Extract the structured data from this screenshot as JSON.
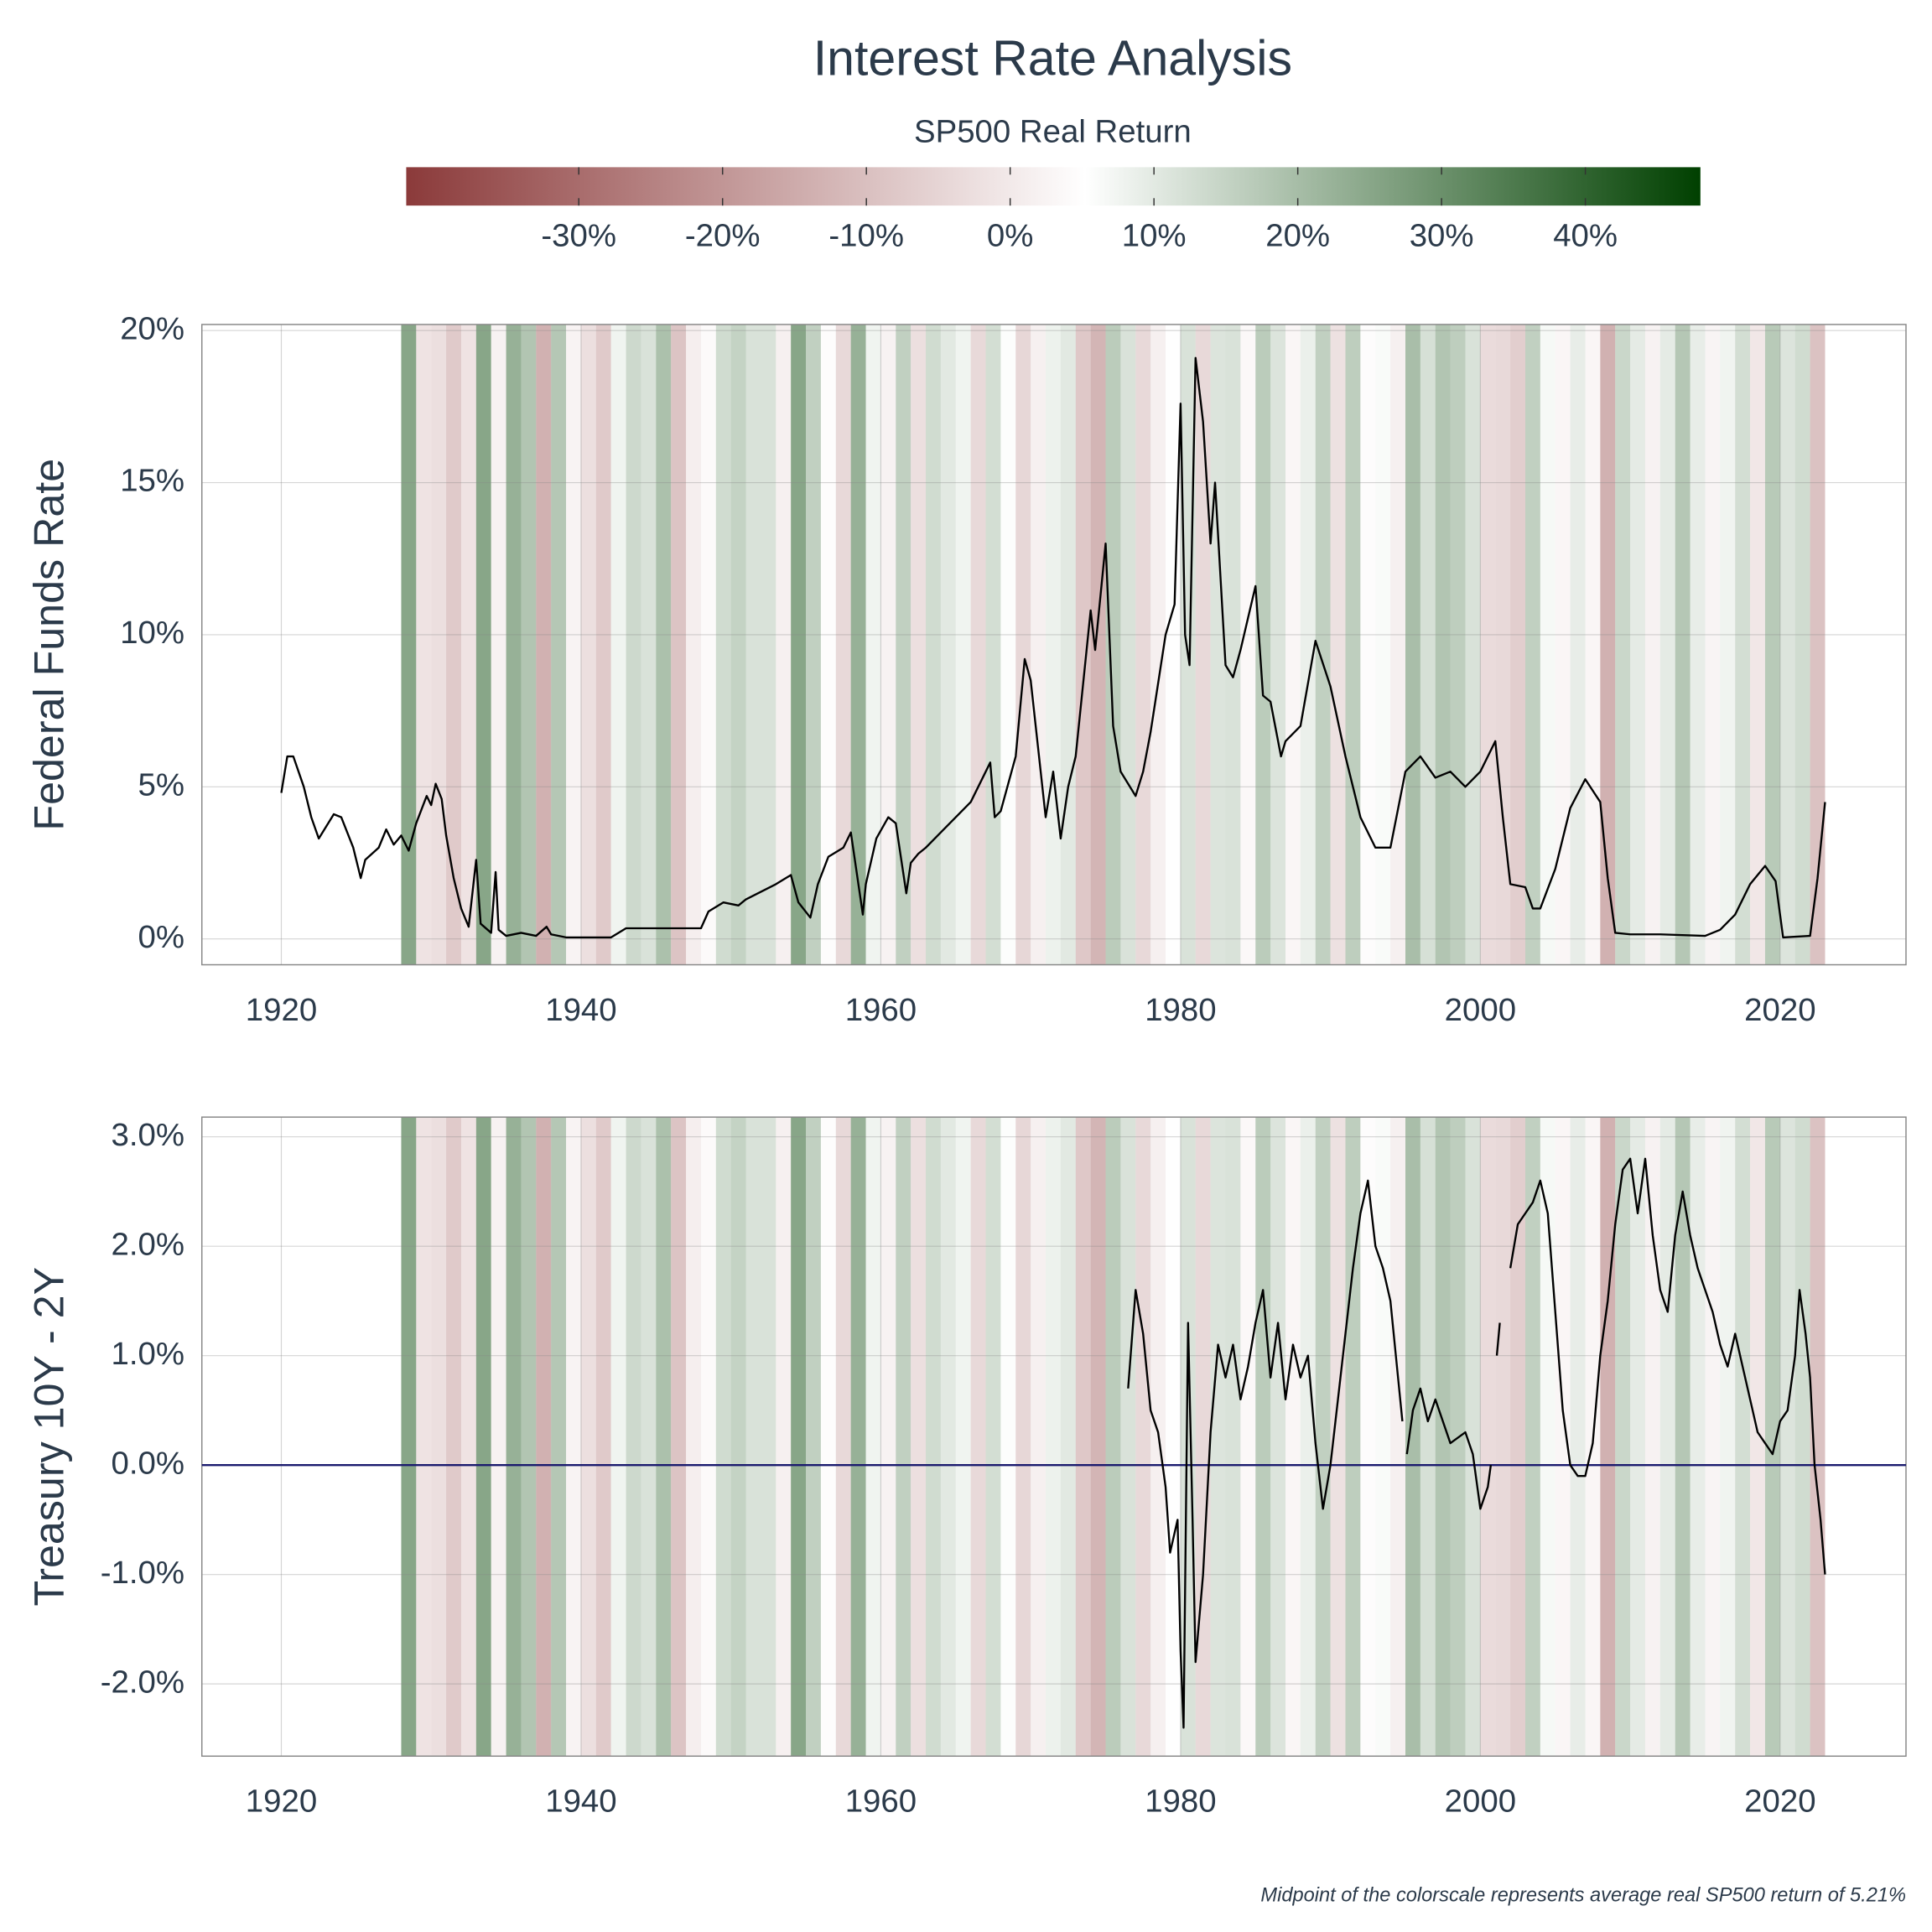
{
  "title": "Interest Rate Analysis",
  "caption": "Midpoint of the colorscale represents average real SP500 return of 5.21%",
  "colorbar": {
    "title": "SP500 Real Return",
    "range": [
      -42,
      48
    ],
    "midpoint": 5.21,
    "colors": [
      "#8b3a3a",
      "#ffffff",
      "#004000"
    ],
    "ticks": [
      {
        "value": -30,
        "label": "-30%"
      },
      {
        "value": -20,
        "label": "-20%"
      },
      {
        "value": -10,
        "label": "-10%"
      },
      {
        "value": 0,
        "label": "0%"
      },
      {
        "value": 10,
        "label": "10%"
      },
      {
        "value": 20,
        "label": "20%"
      },
      {
        "value": 30,
        "label": "30%"
      },
      {
        "value": 40,
        "label": "40%"
      }
    ]
  },
  "return_bands": {
    "years": [
      1928,
      1929,
      1930,
      1931,
      1932,
      1933,
      1934,
      1935,
      1936,
      1937,
      1938,
      1939,
      1940,
      1941,
      1942,
      1943,
      1944,
      1945,
      1946,
      1947,
      1948,
      1949,
      1950,
      1951,
      1952,
      1953,
      1954,
      1955,
      1956,
      1957,
      1958,
      1959,
      1960,
      1961,
      1962,
      1963,
      1964,
      1965,
      1966,
      1967,
      1968,
      1969,
      1970,
      1971,
      1972,
      1973,
      1974,
      1975,
      1976,
      1977,
      1978,
      1979,
      1980,
      1981,
      1982,
      1983,
      1984,
      1985,
      1986,
      1987,
      1988,
      1989,
      1990,
      1991,
      1992,
      1993,
      1994,
      1995,
      1996,
      1997,
      1998,
      1999,
      2000,
      2001,
      2002,
      2003,
      2004,
      2005,
      2006,
      2007,
      2008,
      2009,
      2010,
      2011,
      2012,
      2013,
      2014,
      2015,
      2016,
      2017,
      2018,
      2019,
      2020,
      2021,
      2022
    ],
    "values": [
      45,
      -8,
      -10,
      -20,
      -8,
      45,
      -1,
      40,
      31,
      -32,
      30,
      -0.4,
      -10,
      -20,
      10,
      22,
      18,
      33,
      -23,
      -3,
      3,
      21,
      25,
      18,
      18,
      -2,
      45,
      26,
      4,
      -13,
      40,
      10,
      -1,
      26,
      -10,
      21,
      15,
      10,
      -13,
      20,
      6,
      -14,
      -2,
      11,
      15,
      -21,
      -30,
      28,
      18,
      -13,
      -2,
      5,
      18,
      -13,
      17,
      18,
      2,
      28,
      17,
      1,
      12,
      26,
      -9,
      27,
      4,
      7,
      -2,
      34,
      19,
      31,
      27,
      18,
      -12,
      -13,
      -18,
      26,
      8,
      1,
      13,
      1,
      -32,
      23,
      14,
      -1,
      14,
      30,
      13,
      0,
      10,
      20,
      -6,
      29,
      17,
      21,
      -24
    ]
  },
  "chart_data": [
    {
      "type": "line",
      "ylabel": "Federal Funds Rate",
      "color": "#000000",
      "grid": true,
      "xlim": [
        1914.7,
        2028.4
      ],
      "ylim": [
        -0.85,
        20.2
      ],
      "xticks": [
        1920,
        1940,
        1960,
        1980,
        2000,
        2020
      ],
      "yticks": [
        {
          "value": 0,
          "label": "0%"
        },
        {
          "value": 5,
          "label": "5%"
        },
        {
          "value": 10,
          "label": "10%"
        },
        {
          "value": 15,
          "label": "15%"
        },
        {
          "value": 20,
          "label": "20%"
        }
      ],
      "x": [
        1920,
        1920.4,
        1920.8,
        1921.5,
        1922,
        1922.5,
        1923,
        1923.5,
        1924,
        1924.8,
        1925.3,
        1925.6,
        1926.5,
        1927,
        1927.5,
        1928,
        1928.5,
        1929,
        1929.7,
        1930,
        1930.3,
        1930.7,
        1931,
        1931.5,
        1932,
        1932.5,
        1933,
        1933.3,
        1934,
        1934.3,
        1934.5,
        1935,
        1936,
        1937,
        1937.7,
        1938,
        1939,
        1942,
        1943,
        1948,
        1948.5,
        1949.5,
        1950.5,
        1951,
        1953,
        1954,
        1954.5,
        1955.3,
        1955.8,
        1956.5,
        1957.5,
        1958,
        1958.8,
        1959,
        1959.7,
        1960.5,
        1961,
        1961.7,
        1962,
        1962.5,
        1963,
        1964,
        1965,
        1966,
        1966.5,
        1967.3,
        1967.6,
        1968,
        1969,
        1969.6,
        1970,
        1971,
        1971.5,
        1972,
        1972.5,
        1973,
        1974,
        1974.3,
        1975,
        1975.5,
        1976,
        1977,
        1977.5,
        1978,
        1979,
        1979.6,
        1980,
        1980.3,
        1980.6,
        1981,
        1981.5,
        1982,
        1982.3,
        1983,
        1983.5,
        1984,
        1985,
        1985.5,
        1986,
        1986.7,
        1987,
        1988,
        1989,
        1990,
        1991,
        1992,
        1993,
        1994,
        1995,
        1996,
        1997,
        1998,
        1999,
        2000,
        2001,
        2001.5,
        2002,
        2003,
        2003.5,
        2004,
        2005,
        2006,
        2007,
        2008,
        2008.5,
        2009,
        2010,
        2012,
        2015,
        2016,
        2017,
        2018,
        2019,
        2019.7,
        2020.2,
        2022,
        2022.5,
        2023
      ],
      "values": [
        4.8,
        6.0,
        6.0,
        5.0,
        4.0,
        3.3,
        3.7,
        4.1,
        4.0,
        3.0,
        2.0,
        2.6,
        3.0,
        3.6,
        3.1,
        3.4,
        2.9,
        3.8,
        4.7,
        4.4,
        5.1,
        4.6,
        3.4,
        2.0,
        1.0,
        0.4,
        2.6,
        0.5,
        0.2,
        2.2,
        0.3,
        0.1,
        0.2,
        0.1,
        0.4,
        0.15,
        0.05,
        0.05,
        0.35,
        0.35,
        0.9,
        1.2,
        1.1,
        1.3,
        1.8,
        2.1,
        1.2,
        0.7,
        1.8,
        2.7,
        3.0,
        3.5,
        0.8,
        1.8,
        3.3,
        4.0,
        3.8,
        1.5,
        2.5,
        2.8,
        3.0,
        3.5,
        4.0,
        4.5,
        5.0,
        5.8,
        4.0,
        4.2,
        6.0,
        9.2,
        8.5,
        4.0,
        5.5,
        3.3,
        5.0,
        6.0,
        10.8,
        9.5,
        13.0,
        7.0,
        5.5,
        4.7,
        5.5,
        6.8,
        10.0,
        11.0,
        17.6,
        10.0,
        9.0,
        19.1,
        17.0,
        13.0,
        15.0,
        9.0,
        8.6,
        9.5,
        11.6,
        8.0,
        7.8,
        6.0,
        6.5,
        7.0,
        9.8,
        8.3,
        6.0,
        4.0,
        3.0,
        3.0,
        5.5,
        6.0,
        5.3,
        5.5,
        5.0,
        5.5,
        6.5,
        4.0,
        1.8,
        1.7,
        1.0,
        1.0,
        2.3,
        4.3,
        5.25,
        4.5,
        2.0,
        0.2,
        0.15,
        0.15,
        0.1,
        0.3,
        0.8,
        1.8,
        2.4,
        1.9,
        0.05,
        0.1,
        2.0,
        4.5
      ]
    },
    {
      "type": "line",
      "ylabel": "Treasury 10Y - 2Y",
      "color": "#000000",
      "grid": true,
      "hline": 0,
      "hline_color": "#1a1a6e",
      "xlim": [
        1914.7,
        2028.4
      ],
      "ylim": [
        -2.66,
        3.18
      ],
      "xticks": [
        1920,
        1940,
        1960,
        1980,
        2000,
        2020
      ],
      "yticks": [
        {
          "value": -2,
          "label": "-2.0%"
        },
        {
          "value": -1,
          "label": "-1.0%"
        },
        {
          "value": 0,
          "label": "0.0%"
        },
        {
          "value": 1,
          "label": "1.0%"
        },
        {
          "value": 2,
          "label": "2.0%"
        },
        {
          "value": 3,
          "label": "3.0%"
        }
      ],
      "x": [
        1976.5,
        1977,
        1977.5,
        1978,
        1978.5,
        1979,
        1979.3,
        1979.8,
        1980,
        1980.2,
        1980.5,
        1980.8,
        1981,
        1981.5,
        1982,
        1982.5,
        1983,
        1983.5,
        1984,
        1984.5,
        1985,
        1985.5,
        1986,
        1986.5,
        1987,
        1987.5,
        1988,
        1988.5,
        1989,
        1989.5,
        1990,
        1990.5,
        1991,
        1991.5,
        1992,
        1992.5,
        1993,
        1993.5,
        1994,
        1994.8,
        1994.95,
        1995.1,
        1995.5,
        1996,
        1996.5,
        1997,
        1998,
        1999,
        1999.5,
        2000,
        2000.5,
        2000.7,
        2000.9,
        2001.1,
        2001.3,
        2001.6,
        2002,
        2002.5,
        2003,
        2003.5,
        2004,
        2004.5,
        2005,
        2005.5,
        2006,
        2006.5,
        2007,
        2007.5,
        2008,
        2008.5,
        2009,
        2009.5,
        2010,
        2010.5,
        2011,
        2011.5,
        2012,
        2012.5,
        2013,
        2013.5,
        2014,
        2014.5,
        2015,
        2015.5,
        2016,
        2016.5,
        2017,
        2017.5,
        2018,
        2018.5,
        2019,
        2019.5,
        2020,
        2020.5,
        2021,
        2021.3,
        2021.7,
        2022,
        2022.3,
        2022.7,
        2023
      ],
      "values": [
        0.7,
        1.6,
        1.2,
        0.5,
        0.3,
        -0.2,
        -0.8,
        -0.5,
        -1.7,
        -2.4,
        1.3,
        -0.5,
        -1.8,
        -1.0,
        0.3,
        1.1,
        0.8,
        1.1,
        0.6,
        0.9,
        1.3,
        1.6,
        0.8,
        1.3,
        0.6,
        1.1,
        0.8,
        1.0,
        0.2,
        -0.4,
        0.0,
        0.6,
        1.2,
        1.8,
        2.3,
        2.6,
        2.0,
        1.8,
        1.5,
        0.4,
        null,
        0.1,
        0.5,
        0.7,
        0.4,
        0.6,
        0.2,
        0.3,
        0.1,
        -0.4,
        -0.2,
        0.0,
        null,
        1.0,
        1.3,
        null,
        1.8,
        2.2,
        2.3,
        2.4,
        2.6,
        2.3,
        1.4,
        0.5,
        0.0,
        -0.1,
        -0.1,
        0.2,
        1.0,
        1.5,
        2.2,
        2.7,
        2.8,
        2.3,
        2.8,
        2.1,
        1.6,
        1.4,
        2.1,
        2.5,
        2.1,
        1.8,
        1.6,
        1.4,
        1.1,
        0.9,
        1.2,
        0.9,
        0.6,
        0.3,
        0.2,
        0.1,
        0.4,
        0.5,
        1.0,
        1.6,
        1.2,
        0.8,
        0.0,
        -0.5,
        -1.0
      ]
    }
  ]
}
